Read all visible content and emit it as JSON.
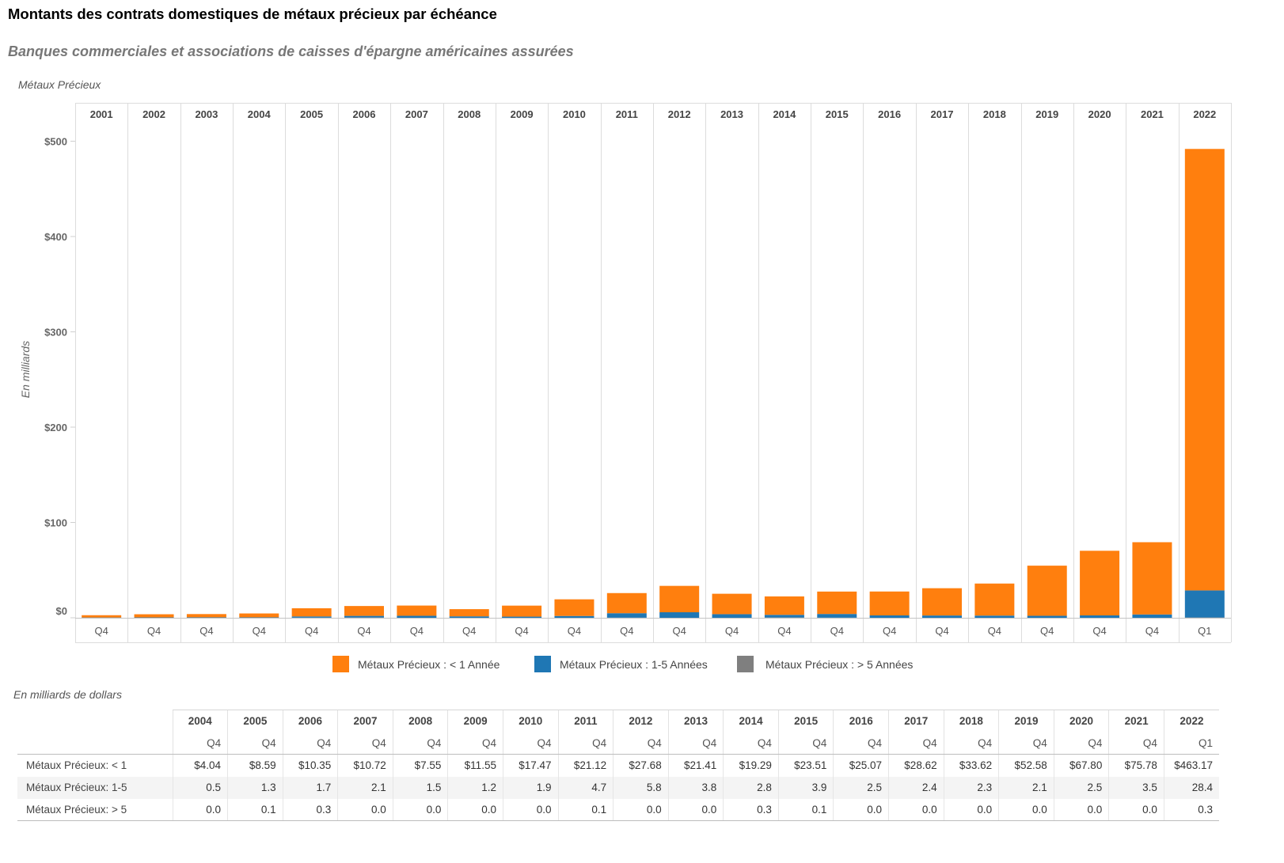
{
  "title": "Montants des contrats domestiques de métaux précieux par échéance",
  "subtitle": "Banques commerciales et associations de caisses d'épargne américaines assurées",
  "chart_header": "Métaux Précieux",
  "chart_data": {
    "type": "bar",
    "stacked": true,
    "categories": [
      "2001",
      "2002",
      "2003",
      "2004",
      "2005",
      "2006",
      "2007",
      "2008",
      "2009",
      "2010",
      "2011",
      "2012",
      "2013",
      "2014",
      "2015",
      "2016",
      "2017",
      "2018",
      "2019",
      "2020",
      "2021",
      "2022"
    ],
    "quarters": [
      "Q4",
      "Q4",
      "Q4",
      "Q4",
      "Q4",
      "Q4",
      "Q4",
      "Q4",
      "Q4",
      "Q4",
      "Q4",
      "Q4",
      "Q4",
      "Q4",
      "Q4",
      "Q4",
      "Q4",
      "Q4",
      "Q4",
      "Q4",
      "Q4",
      "Q1"
    ],
    "ylabel": "En milliards",
    "ylim": [
      0,
      517
    ],
    "yticks": [
      0,
      100,
      200,
      300,
      400,
      500
    ],
    "ytick_labels": [
      "$0",
      "$100",
      "$200",
      "$300",
      "$400",
      "$500"
    ],
    "legend_position": "bottom",
    "series": [
      {
        "name": "Métaux Précieux : < 1 Année",
        "color": "#ff7f0e",
        "values": [
          2.4,
          3.3,
          3.4,
          4.04,
          8.59,
          10.35,
          10.72,
          7.55,
          11.55,
          17.47,
          21.12,
          27.68,
          21.41,
          19.29,
          23.51,
          25.07,
          28.62,
          33.62,
          52.58,
          67.8,
          75.78,
          463.17
        ]
      },
      {
        "name": "Métaux Précieux : 1-5 Années",
        "color": "#1f77b4",
        "values": [
          0.3,
          0.4,
          0.5,
          0.5,
          1.3,
          1.7,
          2.1,
          1.5,
          1.2,
          1.9,
          4.7,
          5.8,
          3.8,
          2.8,
          3.9,
          2.5,
          2.4,
          2.3,
          2.1,
          2.5,
          3.5,
          28.4
        ]
      },
      {
        "name": "Métaux Précieux : > 5 Années",
        "color": "#7f7f7f",
        "values": [
          0.0,
          0.0,
          0.0,
          0.0,
          0.1,
          0.3,
          0.0,
          0.0,
          0.0,
          0.0,
          0.1,
          0.0,
          0.0,
          0.3,
          0.1,
          0.0,
          0.0,
          0.0,
          0.0,
          0.0,
          0.0,
          0.3
        ]
      }
    ]
  },
  "table": {
    "caption": "En milliards de dollars",
    "years": [
      "2004",
      "2005",
      "2006",
      "2007",
      "2008",
      "2009",
      "2010",
      "2011",
      "2012",
      "2013",
      "2014",
      "2015",
      "2016",
      "2017",
      "2018",
      "2019",
      "2020",
      "2021",
      "2022"
    ],
    "quarters": [
      "Q4",
      "Q4",
      "Q4",
      "Q4",
      "Q4",
      "Q4",
      "Q4",
      "Q4",
      "Q4",
      "Q4",
      "Q4",
      "Q4",
      "Q4",
      "Q4",
      "Q4",
      "Q4",
      "Q4",
      "Q4",
      "Q1"
    ],
    "rows": [
      {
        "label": "Métaux Précieux: < 1",
        "values": [
          "$4.04",
          "$8.59",
          "$10.35",
          "$10.72",
          "$7.55",
          "$11.55",
          "$17.47",
          "$21.12",
          "$27.68",
          "$21.41",
          "$19.29",
          "$23.51",
          "$25.07",
          "$28.62",
          "$33.62",
          "$52.58",
          "$67.80",
          "$75.78",
          "$463.17"
        ]
      },
      {
        "label": "Métaux Précieux: 1-5",
        "values": [
          "0.5",
          "1.3",
          "1.7",
          "2.1",
          "1.5",
          "1.2",
          "1.9",
          "4.7",
          "5.8",
          "3.8",
          "2.8",
          "3.9",
          "2.5",
          "2.4",
          "2.3",
          "2.1",
          "2.5",
          "3.5",
          "28.4"
        ]
      },
      {
        "label": "Métaux Précieux: > 5",
        "values": [
          "0.0",
          "0.1",
          "0.3",
          "0.0",
          "0.0",
          "0.0",
          "0.0",
          "0.1",
          "0.0",
          "0.0",
          "0.3",
          "0.1",
          "0.0",
          "0.0",
          "0.0",
          "0.0",
          "0.0",
          "0.0",
          "0.3"
        ]
      }
    ]
  }
}
